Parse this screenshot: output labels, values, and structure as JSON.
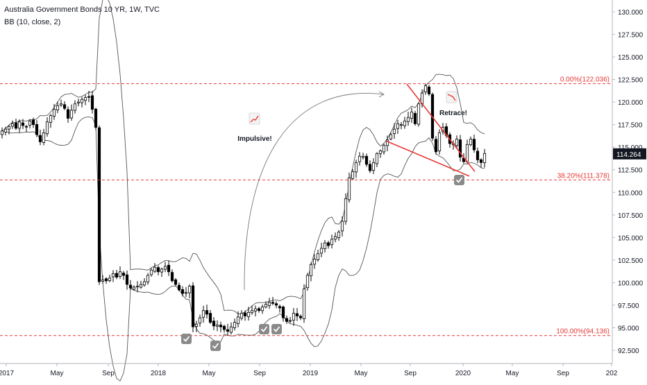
{
  "header": {
    "title": "Australia Government Bonds 10 YR, 1W, TVC",
    "indicator": "BB (10, close, 2)"
  },
  "last_price": "114.264",
  "annotations": {
    "impulsive": "Impulsive!",
    "retrace": "Retrace!"
  },
  "colors": {
    "up": "#ffffff",
    "down": "#000000",
    "wick": "#000000",
    "band": "#555555",
    "fib": "#e53935",
    "wedge": "#e53935",
    "price_badge": "#131722"
  },
  "chart_data": {
    "type": "candlestick",
    "title": "Australia Government Bonds 10 YR, 1W, TVC",
    "indicator": "BB (10, close, 2)",
    "ylim": [
      91.5,
      131
    ],
    "y_ticks": [
      "92.500",
      "95.000",
      "97.500",
      "100.000",
      "102.500",
      "105.000",
      "107.500",
      "110.000",
      "112.500",
      "115.000",
      "117.500",
      "120.000",
      "122.500",
      "125.000",
      "127.500",
      "130.000"
    ],
    "x_ticks": [
      "2017",
      "May",
      "Sep",
      "2018",
      "May",
      "Sep",
      "2019",
      "May",
      "Sep",
      "2020",
      "May",
      "Sep",
      "202"
    ],
    "fib_levels": [
      {
        "label": "0.00%(122.036)",
        "value": 122.036
      },
      {
        "label": "38.20%(111.378)",
        "value": 111.378
      },
      {
        "label": "100.00%(94.136)",
        "value": 94.136
      }
    ],
    "last_price": 114.264,
    "closes": [
      116.8,
      117.0,
      117.3,
      117.6,
      117.1,
      117.8,
      117.4,
      117.3,
      117.9,
      117.5,
      116.4,
      115.6,
      116.6,
      117.8,
      118.5,
      119.2,
      119.6,
      119.8,
      119.3,
      118.2,
      119.1,
      119.8,
      120.0,
      120.3,
      120.5,
      120.6,
      119.2,
      117.2,
      100.1,
      100.3,
      100.2,
      100.5,
      101.0,
      100.6,
      101.2,
      100.8,
      99.8,
      99.4,
      99.5,
      99.6,
      99.8,
      100.1,
      100.8,
      101.4,
      101.7,
      101.2,
      101.5,
      101.8,
      101.2,
      100.2,
      99.8,
      99.2,
      98.8,
      98.9,
      99.6,
      95.1,
      95.4,
      96.1,
      96.9,
      96.5,
      95.6,
      95.2,
      95.3,
      95.1,
      94.8,
      94.6,
      95.1,
      95.6,
      96.2,
      96.6,
      96.3,
      96.7,
      96.9,
      97.1,
      96.9,
      97.3,
      97.6,
      97.8,
      97.7,
      97.5,
      97.2,
      96.1,
      95.7,
      95.8,
      96.6,
      96.3,
      96.1,
      99.3,
      100.8,
      102.0,
      102.6,
      103.2,
      103.8,
      104.4,
      104.1,
      104.8,
      105.1,
      105.6,
      106.8,
      109.3,
      111.6,
      112.3,
      113.3,
      114.0,
      114.0,
      113.1,
      112.4,
      113.3,
      114.3,
      114.6,
      115.2,
      115.8,
      116.4,
      117.0,
      117.6,
      117.5,
      117.9,
      118.3,
      118.9,
      117.6,
      119.8,
      121.0,
      121.8,
      120.9,
      116.0,
      114.5,
      116.6,
      117.2,
      116.3,
      115.4,
      115.3,
      115.9,
      113.9,
      113.4,
      115.3,
      115.9,
      114.7,
      113.6,
      113.3,
      114.3
    ]
  }
}
